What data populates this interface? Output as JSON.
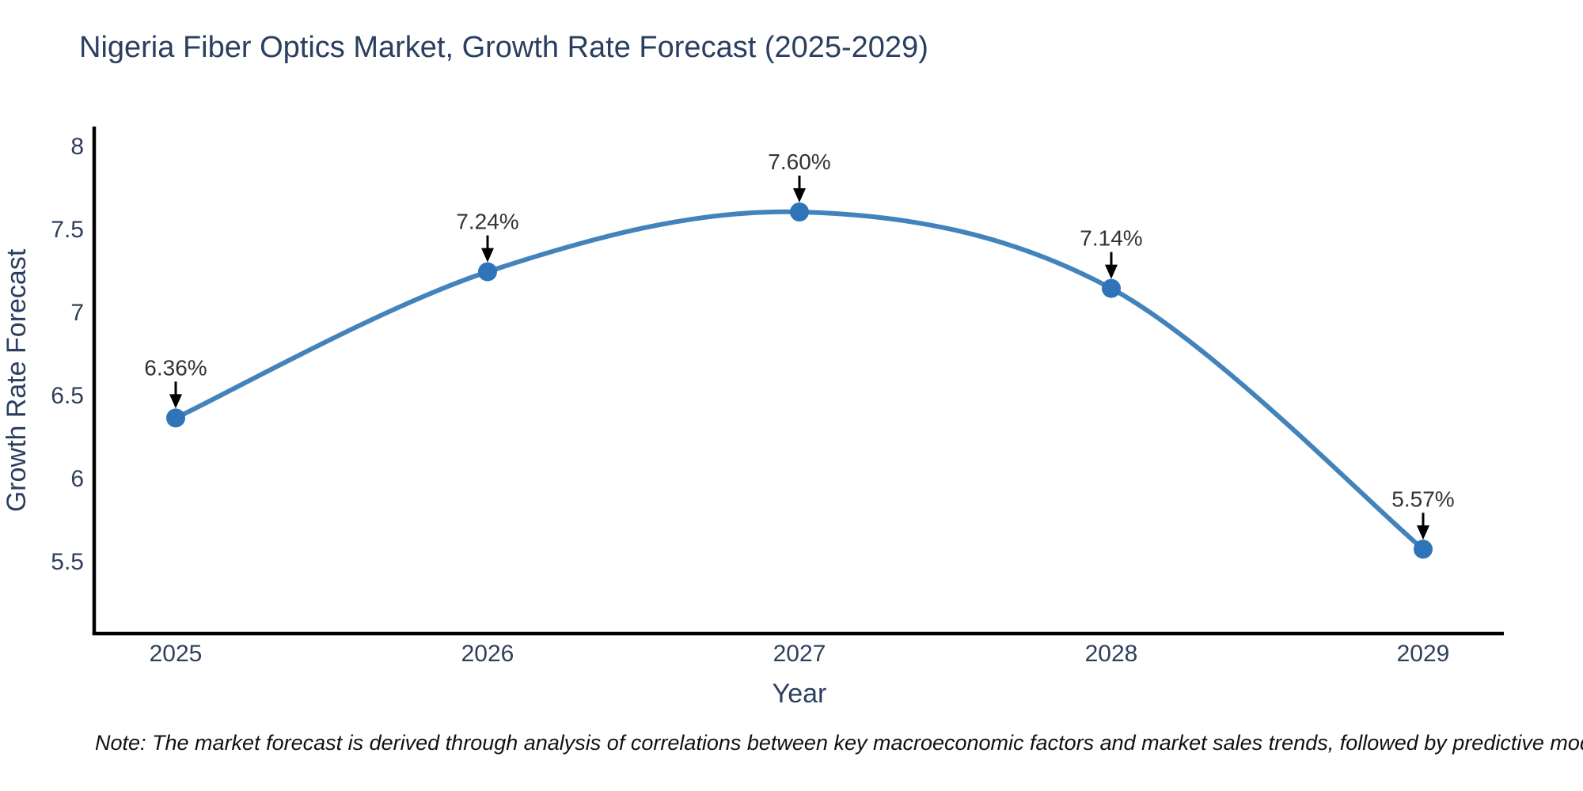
{
  "page": {
    "background": "#ffffff"
  },
  "chart_data": {
    "type": "line",
    "title": "Nigeria Fiber Optics Market, Growth Rate Forecast (2025-2029)",
    "xlabel": "Year",
    "ylabel": "Growth Rate Forecast",
    "categories": [
      "2025",
      "2026",
      "2027",
      "2028",
      "2029"
    ],
    "series": [
      {
        "name": "Growth Rate Forecast",
        "values": [
          6.36,
          7.24,
          7.6,
          7.14,
          5.57
        ],
        "point_labels": [
          "6.36%",
          "7.24%",
          "7.60%",
          "7.14%",
          "5.57%"
        ]
      }
    ],
    "yticks": [
      8,
      7.5,
      7,
      6.5,
      6,
      5.5
    ],
    "ylim": [
      5.06,
      8.11
    ],
    "grid": false,
    "legend_position": "none",
    "curve": "spline",
    "annotations": "black arrows pointing down at each data point with percentage labels",
    "colors": {
      "line": "#4383bc",
      "marker": "#2f74b9",
      "axis_line": "#000000",
      "arrow": "#000000",
      "title_text": "#2a3f5f",
      "tick_text": "#2f3f5c",
      "annotation_text": "#333333"
    }
  },
  "note": {
    "text": "Note: The market forecast is derived through analysis of correlations between key macroeconomic factors and market sales trends, followed by predictive modeling to project future sales"
  }
}
